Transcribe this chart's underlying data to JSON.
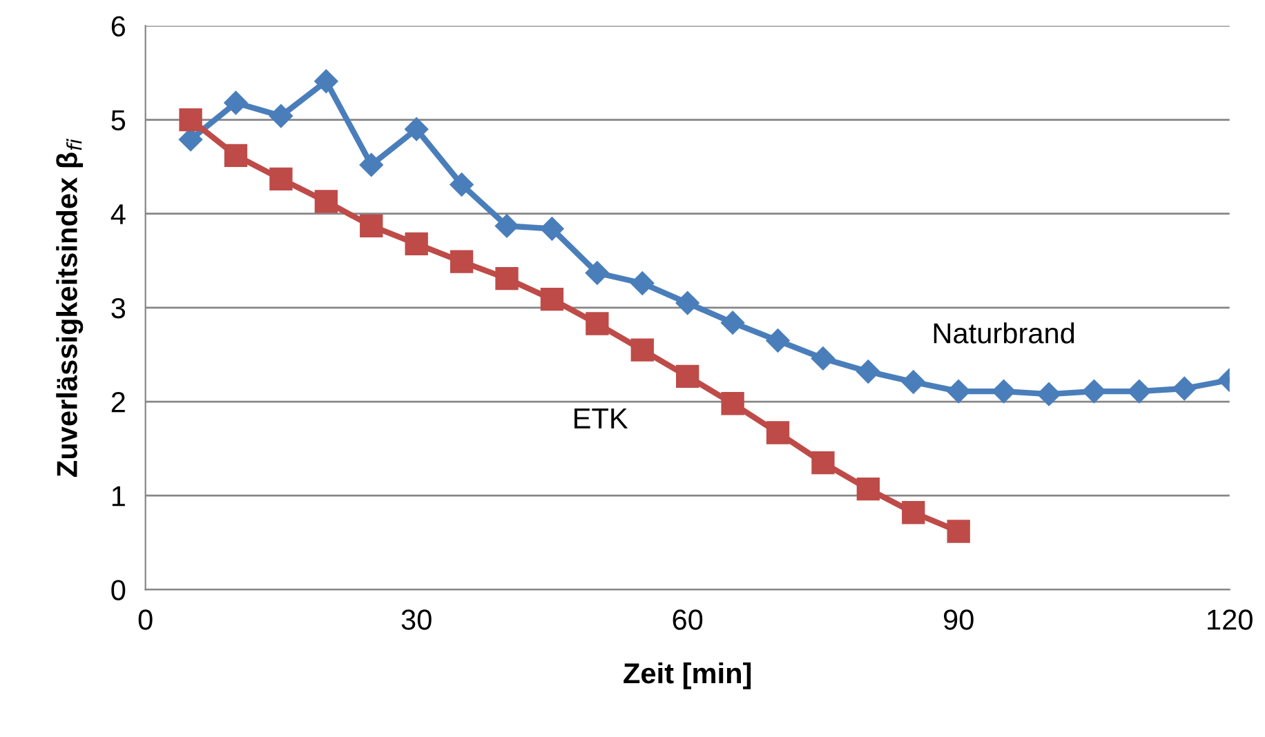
{
  "chart_data": {
    "type": "line",
    "xlabel": "Zeit [min]",
    "ylabel": "Zuverlässigkeitsindex β$_{fi}$",
    "xlim": [
      0,
      120
    ],
    "xticks": [
      0,
      30,
      60,
      90,
      120
    ],
    "ylim": [
      0,
      6
    ],
    "yticks": [
      0,
      1,
      2,
      3,
      4,
      5,
      6
    ],
    "grid": "y",
    "legend": false,
    "line_style": "solid",
    "series": [
      {
        "name": "Naturbrand",
        "color": "#4a7ebb",
        "marker": "diamond",
        "x": [
          5,
          10,
          15,
          20,
          25,
          30,
          35,
          40,
          45,
          50,
          55,
          60,
          65,
          70,
          75,
          80,
          85,
          90,
          95,
          100,
          105,
          110,
          115,
          120
        ],
        "values": [
          4.79,
          5.18,
          5.04,
          5.41,
          4.52,
          4.9,
          4.31,
          3.87,
          3.84,
          3.37,
          3.26,
          3.05,
          2.84,
          2.65,
          2.46,
          2.32,
          2.21,
          2.11,
          2.11,
          2.08,
          2.11,
          2.11,
          2.14,
          2.23
        ]
      },
      {
        "name": "ETK",
        "color": "#be4b48",
        "marker": "square",
        "x": [
          5,
          10,
          15,
          20,
          25,
          30,
          35,
          40,
          45,
          50,
          55,
          60,
          65,
          70,
          75,
          80,
          85,
          90
        ],
        "values": [
          5.0,
          4.62,
          4.37,
          4.13,
          3.87,
          3.68,
          3.49,
          3.31,
          3.09,
          2.83,
          2.55,
          2.27,
          1.98,
          1.67,
          1.35,
          1.07,
          0.82,
          0.62
        ]
      }
    ]
  }
}
